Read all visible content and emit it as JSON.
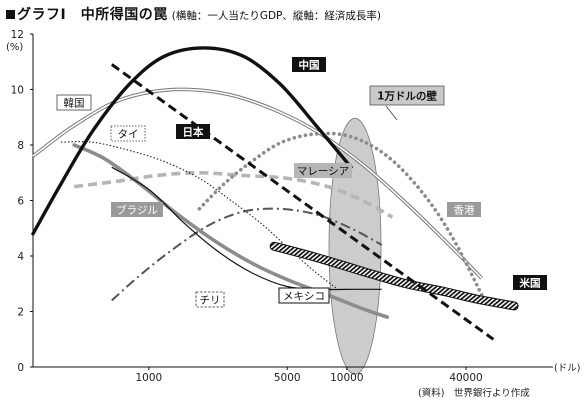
{
  "title": {
    "mark": "■",
    "main": "グラフⅠ　中所得国の罠",
    "sub": "(横軸：一人当たりGDP、縦軸：経済成長率)"
  },
  "axes": {
    "y_unit": "(%)",
    "x_unit": "(ドル)",
    "y_ticks": [
      "12",
      "10",
      "8",
      "6",
      "4",
      "2",
      "0"
    ],
    "x_ticks": [
      "1000",
      "5000",
      "10000",
      "40000"
    ]
  },
  "source": "(資料)　世界銀行より作成",
  "ellipse_label": "1万ドルの壁",
  "colors": {
    "black": "#111111",
    "dark_gray": "#555555",
    "mid_gray": "#8c8c8c",
    "light_gray": "#b5b5b5",
    "ellipse_fill": "#cccccc"
  },
  "chart_data": {
    "type": "line",
    "title": "中所得国の罠",
    "xlabel": "一人当たりGDP",
    "ylabel": "経済成長率",
    "x_scale": "log",
    "x_ticks": [
      1000,
      5000,
      10000,
      40000
    ],
    "y_ticks": [
      0,
      2,
      4,
      6,
      8,
      10,
      12
    ],
    "ylim": [
      0,
      12
    ],
    "xlim": [
      260,
      110000
    ],
    "grid": false,
    "highlight": {
      "label": "1万ドルの壁",
      "x_center": 11000,
      "y_center": 4.35
    },
    "series": [
      {
        "name": "中国",
        "style": "solid-thick",
        "color": "#111111",
        "x": [
          260,
          360,
          520,
          800,
          1200,
          1900,
          3000,
          4600,
          7000,
          10500
        ],
        "y": [
          4.8,
          6.6,
          8.5,
          10.2,
          11.2,
          11.5,
          11.2,
          10.2,
          8.7,
          7.2
        ]
      },
      {
        "name": "日本",
        "style": "dashed-thick",
        "color": "#111111",
        "x": [
          650,
          1000,
          1600,
          2600,
          4200,
          7000,
          12000,
          20000,
          34000,
          55000
        ],
        "y": [
          10.9,
          10.1,
          9.1,
          8.0,
          6.9,
          5.5,
          4.2,
          3.0,
          1.9,
          1.0
        ]
      },
      {
        "name": "韓国",
        "style": "double-gray",
        "color": "#555555",
        "x": [
          260,
          400,
          650,
          1000,
          1600,
          2600,
          4200,
          7000,
          12000,
          20000,
          34000,
          48000
        ],
        "y": [
          7.6,
          8.6,
          9.5,
          9.9,
          10.0,
          9.8,
          9.3,
          8.5,
          7.3,
          5.9,
          4.3,
          3.2
        ]
      },
      {
        "name": "タイ",
        "style": "dotted",
        "color": "#111111",
        "x": [
          360,
          520,
          800,
          1200,
          1800,
          2600,
          3800,
          5200,
          7000,
          9000
        ],
        "y": [
          8.1,
          8.1,
          7.8,
          7.4,
          6.8,
          6.0,
          5.1,
          4.2,
          3.4,
          2.8
        ]
      },
      {
        "name": "ブラジル",
        "style": "solid-thick-gray",
        "color": "#8c8c8c",
        "x": [
          420,
          600,
          900,
          1400,
          2200,
          3400,
          5200,
          8000,
          12000,
          16000
        ],
        "y": [
          8.0,
          7.5,
          6.6,
          5.5,
          4.5,
          3.7,
          3.1,
          2.6,
          2.1,
          1.8
        ]
      },
      {
        "name": "メキシコ",
        "style": "solid-thin",
        "color": "#111111",
        "x": [
          650,
          1000,
          1500,
          2200,
          3300,
          5000,
          7500,
          11000,
          15000
        ],
        "y": [
          7.2,
          6.4,
          5.2,
          4.2,
          3.4,
          2.9,
          2.8,
          2.8,
          2.8
        ]
      },
      {
        "name": "マレーシア",
        "style": "dashed-thick-gray",
        "color": "#b5b5b5",
        "x": [
          420,
          700,
          1100,
          1800,
          3000,
          5000,
          8000,
          12000,
          17000
        ],
        "y": [
          6.5,
          6.7,
          6.9,
          7.0,
          6.9,
          6.8,
          6.5,
          6.0,
          5.4
        ]
      },
      {
        "name": "チリ",
        "style": "dash-dot",
        "color": "#555555",
        "x": [
          650,
          900,
          1300,
          2000,
          3000,
          4500,
          7000,
          10500,
          15000
        ],
        "y": [
          2.4,
          3.3,
          4.2,
          5.1,
          5.6,
          5.7,
          5.5,
          5.0,
          4.4
        ]
      },
      {
        "name": "香港",
        "style": "dotted-thick-gray",
        "color": "#8c8c8c",
        "x": [
          1800,
          2400,
          3300,
          4700,
          7000,
          10500,
          16000,
          24000,
          34000,
          48000
        ],
        "y": [
          5.7,
          6.6,
          7.4,
          8.1,
          8.4,
          8.3,
          7.6,
          6.3,
          4.7,
          2.6
        ]
      },
      {
        "name": "米国",
        "style": "hatched-thick",
        "color": "#111111",
        "x": [
          4300,
          7000,
          12000,
          20000,
          32000,
          45000,
          70000
        ],
        "y": [
          4.35,
          3.95,
          3.45,
          3.0,
          2.7,
          2.45,
          2.2
        ]
      }
    ]
  }
}
